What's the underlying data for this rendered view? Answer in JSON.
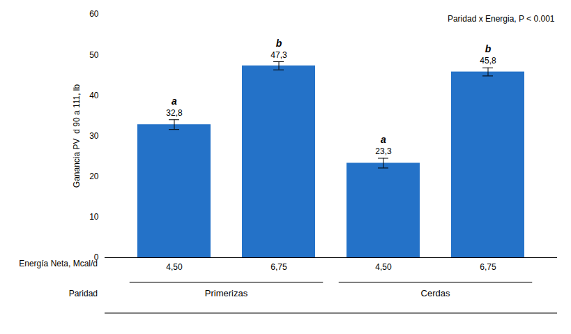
{
  "chart_data": {
    "type": "bar",
    "categories": [
      "4,50",
      "6,75",
      "4,50",
      "6,75"
    ],
    "groups": [
      "Primerizas",
      "Primerizas",
      "Cerdas",
      "Cerdas"
    ],
    "values": [
      32.8,
      47.3,
      23.3,
      45.8
    ],
    "value_labels": [
      "32,8",
      "47,3",
      "23,3",
      "45,8"
    ],
    "errors": [
      1.2,
      1.0,
      1.2,
      1.0
    ],
    "letters": [
      "a",
      "b",
      "a",
      "b"
    ],
    "color": "#2472C8",
    "ylabel": "Ganancia PV  d 90 a 111, lb",
    "xlabel": "Energía Neta, Mcal/d",
    "group_label": "Paridad",
    "annotation": "Paridad x Energia, P < 0.001",
    "ylim": [
      0,
      60
    ],
    "yticks": [
      0,
      10,
      20,
      30,
      40,
      50,
      60
    ],
    "grid": false,
    "data_labels": true
  }
}
